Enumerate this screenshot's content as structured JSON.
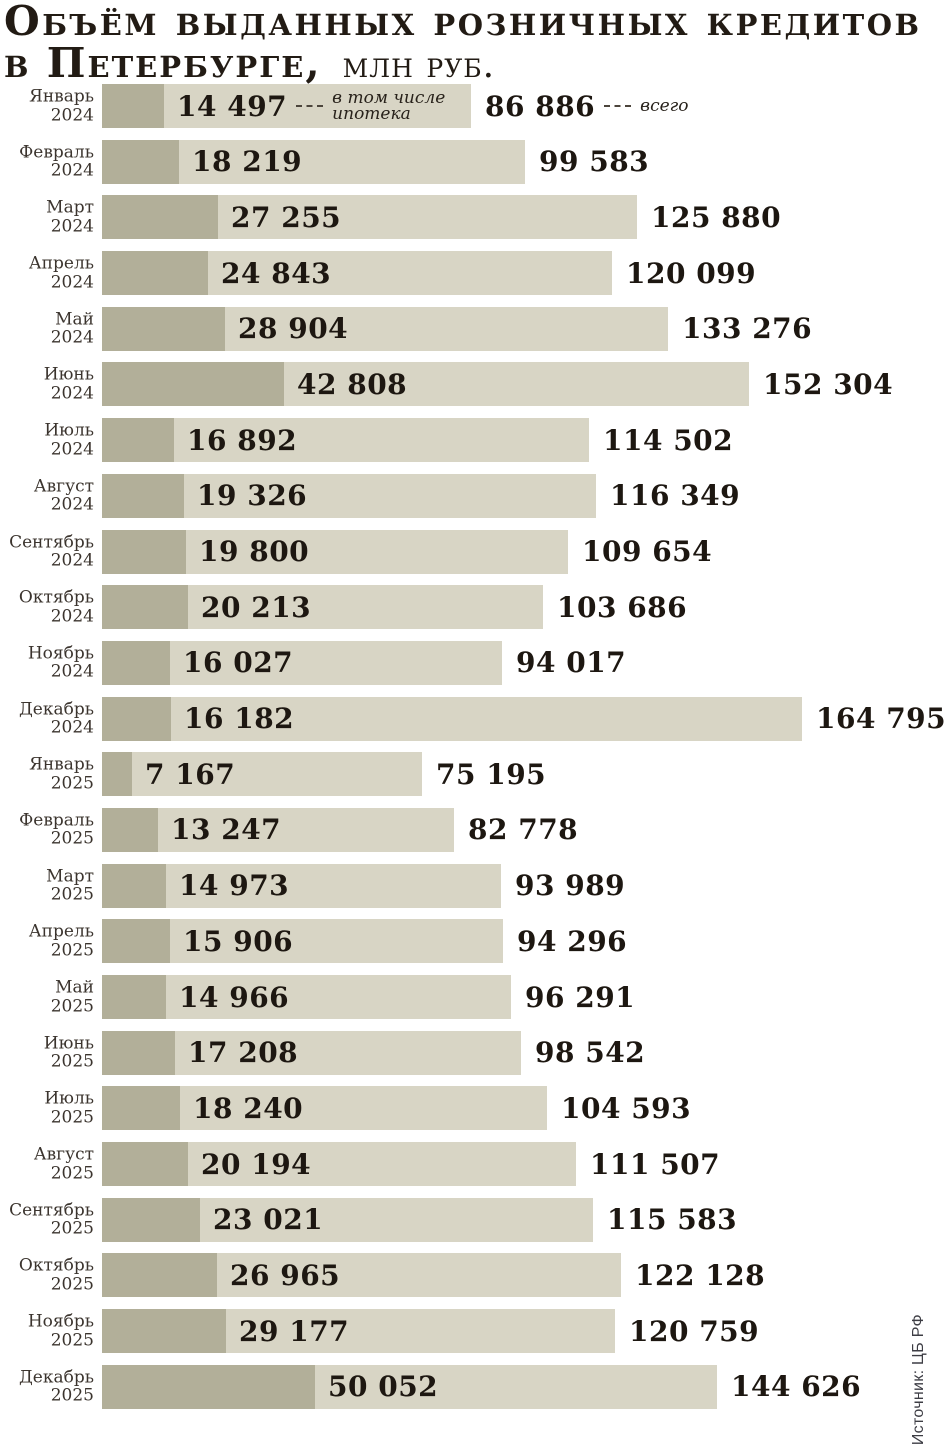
{
  "title": {
    "line1": "Объём выданных розничных кредитов",
    "line2_main": "в Петербурге,",
    "line2_unit": "млн руб."
  },
  "annotations": {
    "mortgage_line1": "в том числе",
    "mortgage_line2": "ипотека",
    "total": "всего"
  },
  "source": "Источник: ЦБ РФ",
  "colors": {
    "bar_total": "#d8d5c5",
    "bar_mortgage": "#b2af99",
    "title_text": "#221b14",
    "value_text": "#1d1711",
    "label_text": "#3b342e"
  },
  "chart_data": {
    "type": "bar",
    "orientation": "horizontal",
    "title": "Объём выданных розничных кредитов в Петербурге, млн руб.",
    "categories": [
      "Январь 2024",
      "Февраль 2024",
      "Март 2024",
      "Апрель 2024",
      "Май 2024",
      "Июнь 2024",
      "Июль 2024",
      "Август 2024",
      "Сентябрь 2024",
      "Октябрь 2024",
      "Ноябрь 2024",
      "Декабрь 2024",
      "Январь 2025",
      "Февраль 2025",
      "Март 2025",
      "Апрель 2025",
      "Май 2025",
      "Июнь 2025",
      "Июль 2025",
      "Август 2025",
      "Сентябрь 2025",
      "Октябрь 2025",
      "Ноябрь 2025",
      "Декабрь 2025"
    ],
    "series": [
      {
        "name": "в том числе ипотека",
        "values": [
          14497,
          18219,
          27255,
          24843,
          28904,
          42808,
          16892,
          19326,
          19800,
          20213,
          16027,
          16182,
          7167,
          13247,
          14973,
          15906,
          14966,
          17208,
          18240,
          20194,
          23021,
          26965,
          29177,
          50052
        ]
      },
      {
        "name": "всего",
        "values": [
          86886,
          99583,
          125880,
          120099,
          133276,
          152304,
          114502,
          116349,
          109654,
          103686,
          94017,
          164795,
          75195,
          82778,
          93989,
          94296,
          96291,
          98542,
          104593,
          111507,
          115583,
          122128,
          120759,
          144626
        ]
      }
    ],
    "xlim": [
      0,
      164795
    ],
    "grid": false,
    "legend_position": "inline-first-row",
    "source": "Источник: ЦБ РФ"
  },
  "rows": [
    {
      "month": "Январь",
      "year": "2024",
      "mortgage_label": "14 497",
      "total_label": "86 886"
    },
    {
      "month": "Февраль",
      "year": "2024",
      "mortgage_label": "18 219",
      "total_label": "99 583"
    },
    {
      "month": "Март",
      "year": "2024",
      "mortgage_label": "27 255",
      "total_label": "125 880"
    },
    {
      "month": "Апрель",
      "year": "2024",
      "mortgage_label": "24 843",
      "total_label": "120 099"
    },
    {
      "month": "Май",
      "year": "2024",
      "mortgage_label": "28 904",
      "total_label": "133 276"
    },
    {
      "month": "Июнь",
      "year": "2024",
      "mortgage_label": "42 808",
      "total_label": "152 304"
    },
    {
      "month": "Июль",
      "year": "2024",
      "mortgage_label": "16 892",
      "total_label": "114 502"
    },
    {
      "month": "Август",
      "year": "2024",
      "mortgage_label": "19 326",
      "total_label": "116 349"
    },
    {
      "month": "Сентябрь",
      "year": "2024",
      "mortgage_label": "19 800",
      "total_label": "109 654"
    },
    {
      "month": "Октябрь",
      "year": "2024",
      "mortgage_label": "20 213",
      "total_label": "103 686"
    },
    {
      "month": "Ноябрь",
      "year": "2024",
      "mortgage_label": "16 027",
      "total_label": "94 017"
    },
    {
      "month": "Декабрь",
      "year": "2024",
      "mortgage_label": "16 182",
      "total_label": "164 795"
    },
    {
      "month": "Январь",
      "year": "2025",
      "mortgage_label": "7 167",
      "total_label": "75 195"
    },
    {
      "month": "Февраль",
      "year": "2025",
      "mortgage_label": "13 247",
      "total_label": "82 778"
    },
    {
      "month": "Март",
      "year": "2025",
      "mortgage_label": "14 973",
      "total_label": "93 989"
    },
    {
      "month": "Апрель",
      "year": "2025",
      "mortgage_label": "15 906",
      "total_label": "94 296"
    },
    {
      "month": "Май",
      "year": "2025",
      "mortgage_label": "14 966",
      "total_label": "96 291"
    },
    {
      "month": "Июнь",
      "year": "2025",
      "mortgage_label": "17 208",
      "total_label": "98 542"
    },
    {
      "month": "Июль",
      "year": "2025",
      "mortgage_label": "18 240",
      "total_label": "104 593"
    },
    {
      "month": "Август",
      "year": "2025",
      "mortgage_label": "20 194",
      "total_label": "111 507"
    },
    {
      "month": "Сентябрь",
      "year": "2025",
      "mortgage_label": "23 021",
      "total_label": "115 583"
    },
    {
      "month": "Октябрь",
      "year": "2025",
      "mortgage_label": "26 965",
      "total_label": "122 128"
    },
    {
      "month": "Ноябрь",
      "year": "2025",
      "mortgage_label": "29 177",
      "total_label": "120 759"
    },
    {
      "month": "Декабрь",
      "year": "2025",
      "mortgage_label": "50 052",
      "total_label": "144 626"
    }
  ]
}
